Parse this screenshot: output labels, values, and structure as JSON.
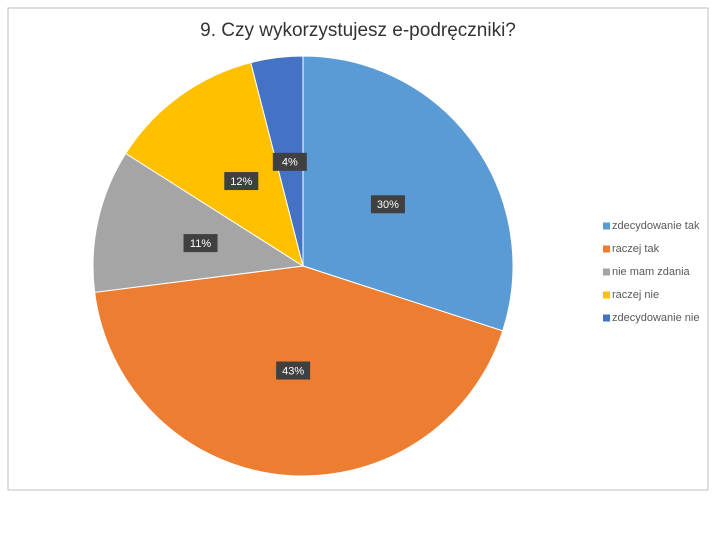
{
  "chart_data": {
    "type": "pie",
    "title": "9. Czy wykorzystujesz e-podręczniki?",
    "categories": [
      "zdecydowanie tak",
      "raczej tak",
      "nie mam zdania",
      "raczej nie",
      "zdecydowanie nie"
    ],
    "values": [
      30,
      43,
      11,
      12,
      4
    ],
    "value_labels": [
      "30%",
      "43%",
      "11%",
      "12%",
      "4%"
    ],
    "colors": [
      "#5b9bd5",
      "#ed7d31",
      "#a5a5a5",
      "#ffc000",
      "#4472c4"
    ],
    "legend": "right"
  }
}
